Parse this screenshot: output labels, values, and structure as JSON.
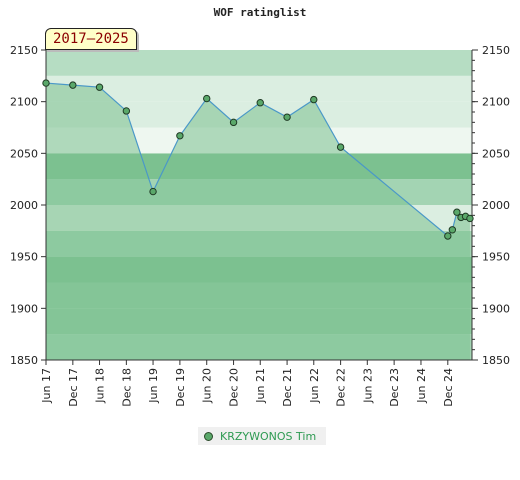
{
  "title": "WOF ratinglist",
  "range_label": "2017–2025",
  "colors": {
    "band_light": "#b6ddc3",
    "band_mid": "#a3d4b3",
    "band_dark": "#8fca9f",
    "band_darker": "#7cc190",
    "band_pale": "#dbeee1",
    "band_palest": "#eef7f0",
    "area_fill": "#7cc190",
    "line": "#4a98c8",
    "marker": "#5aa86a",
    "legend_text": "#2e9a52"
  },
  "chart_data": {
    "type": "area",
    "title": "WOF ratinglist",
    "xlabel": "",
    "ylabel": "",
    "ylim": [
      1850,
      2150
    ],
    "y_ticks": [
      "1850",
      "1900",
      "1950",
      "2000",
      "2050",
      "2100",
      "2150"
    ],
    "x_ticks": [
      "Jun 17",
      "Dec 17",
      "Jun 18",
      "Dec 18",
      "Jun 19",
      "Dec 19",
      "Jun 20",
      "Dec 20",
      "Jun 21",
      "Dec 21",
      "Jun 22",
      "Dec 22",
      "Jun 23",
      "Dec 23",
      "Jun 24",
      "Dec 24"
    ],
    "grid": true,
    "legend_position": "bottom-center",
    "series": [
      {
        "name": "KRZYWONOS Tim",
        "points": [
          {
            "x": "2017-06",
            "y": 2118
          },
          {
            "x": "2017-12",
            "y": 2116
          },
          {
            "x": "2018-06",
            "y": 2114
          },
          {
            "x": "2018-12",
            "y": 2091
          },
          {
            "x": "2019-06",
            "y": 2013
          },
          {
            "x": "2019-12",
            "y": 2067
          },
          {
            "x": "2020-06",
            "y": 2103
          },
          {
            "x": "2020-12",
            "y": 2080
          },
          {
            "x": "2021-06",
            "y": 2099
          },
          {
            "x": "2021-12",
            "y": 2085
          },
          {
            "x": "2022-06",
            "y": 2102
          },
          {
            "x": "2022-12",
            "y": 2056
          },
          {
            "x": "2024-12",
            "y": 1970
          },
          {
            "x": "2025-01",
            "y": 1976
          },
          {
            "x": "2025-02",
            "y": 1993
          },
          {
            "x": "2025-03",
            "y": 1988
          },
          {
            "x": "2025-04",
            "y": 1989
          },
          {
            "x": "2025-05",
            "y": 1987
          }
        ]
      }
    ]
  }
}
